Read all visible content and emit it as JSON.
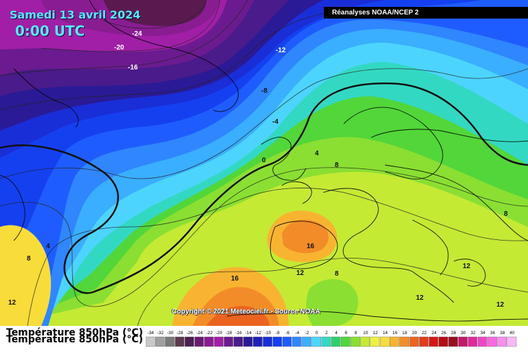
{
  "header": {
    "date": "Samedi 13 avril 2024",
    "time": "0:00 UTC",
    "source": "Réanalyses NOAA/NCEP 2"
  },
  "footer": {
    "copyright": "Copyright © 2021 Meteociel.fr - Source NOAA",
    "legend_title": "Température 850hPa (°C)"
  },
  "legend": {
    "ticks": [
      "-34",
      "-32",
      "-30",
      "-28",
      "-26",
      "-24",
      "-22",
      "-20",
      "-18",
      "-16",
      "-14",
      "-12",
      "-10",
      "-8",
      "-6",
      "-4",
      "-2",
      "0",
      "2",
      "4",
      "6",
      "8",
      "10",
      "12",
      "14",
      "16",
      "18",
      "20",
      "22",
      "24",
      "26",
      "28",
      "30",
      "32",
      "34",
      "36",
      "38",
      "40"
    ],
    "colors": [
      "#c8c8c8",
      "#a0a0a0",
      "#7a7a7a",
      "#5a3a4e",
      "#4b1f52",
      "#6a1a72",
      "#8a1c92",
      "#a01fa6",
      "#6b1b8f",
      "#4a1b8a",
      "#2a1a96",
      "#1e20b8",
      "#1a2ed8",
      "#1440f0",
      "#1f5cff",
      "#2f86ff",
      "#3aaeff",
      "#4cd4ff",
      "#33d8c2",
      "#2fcf6e",
      "#52d63a",
      "#8adf32",
      "#c4ea34",
      "#f0f040",
      "#f8dc3a",
      "#f8b430",
      "#f28c28",
      "#ea6420",
      "#e23c1c",
      "#d41818",
      "#b40c14",
      "#960e20",
      "#c2186a",
      "#de2c9a",
      "#ee48c6",
      "#f868e2",
      "#fa90ee",
      "#fcb8f4"
    ]
  },
  "contours": [
    {
      "label": "-24"
    },
    {
      "label": "-20"
    },
    {
      "label": "-16"
    },
    {
      "label": "-12"
    },
    {
      "label": "-8"
    },
    {
      "label": "-4"
    },
    {
      "label": "0"
    },
    {
      "label": "4"
    },
    {
      "label": "8"
    },
    {
      "label": "16"
    },
    {
      "label": "12"
    },
    {
      "label": "8"
    },
    {
      "label": "16"
    },
    {
      "label": "12"
    },
    {
      "label": "4"
    },
    {
      "label": "8"
    },
    {
      "label": "12"
    },
    {
      "label": "8"
    },
    {
      "label": "12"
    },
    {
      "label": "12"
    }
  ]
}
